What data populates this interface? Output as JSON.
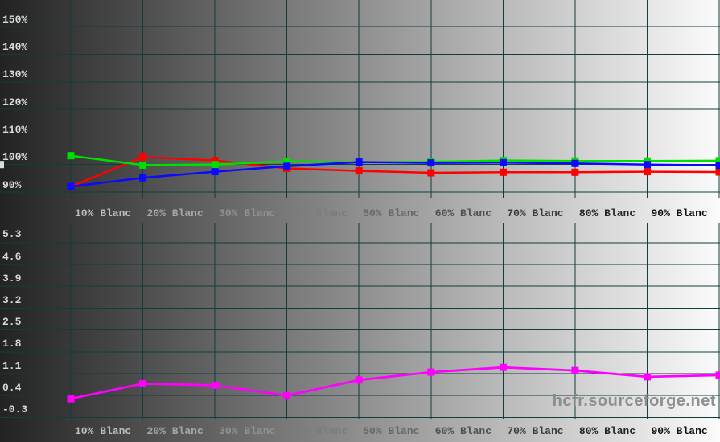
{
  "watermark": {
    "text": "hcfr.sourceforge.net"
  },
  "colors": {
    "background_left": "#232323",
    "background_right": "#fbfbfb",
    "grid": "#0f3e3e",
    "red_series": "#ff0000",
    "green_series": "#00e000",
    "blue_series": "#0a0aff",
    "magenta_series": "#ff00ff",
    "reference_dash_left": "#dcdcdc",
    "reference_dash_right": "#0a0a0a",
    "watermark_text": "#85898c"
  },
  "chart_data": [
    {
      "type": "line",
      "name": "rgb-levels-percent",
      "title": "",
      "xlabel": "",
      "ylabel": "",
      "unit": "%",
      "grid": true,
      "legend": "none",
      "background": "horizontal gradient dark-to-light",
      "x_values": [
        10,
        20,
        30,
        40,
        50,
        60,
        70,
        80,
        90,
        100
      ],
      "categories": [
        "10% Blanc",
        "20% Blanc",
        "30% Blanc",
        "40% Blanc",
        "50% Blanc",
        "60% Blanc",
        "70% Blanc",
        "80% Blanc",
        "90% Blanc"
      ],
      "y_ticks": [
        150,
        140,
        130,
        120,
        110,
        100,
        90
      ],
      "y_tick_labels": [
        "150%",
        "140%",
        "130%",
        "120%",
        "110%",
        "100%",
        "90%"
      ],
      "ylim": [
        88,
        160
      ],
      "reference_value": 100,
      "reference_style": "dashed inverted line with square marker at left edge",
      "series": [
        {
          "name": "Red",
          "color": "#ff0000",
          "values": [
            92.0,
            102.7,
            101.5,
            98.6,
            97.7,
            97.0,
            97.2,
            97.2,
            97.4,
            97.3
          ]
        },
        {
          "name": "Green",
          "color": "#00e000",
          "values": [
            103.2,
            99.8,
            100.0,
            101.2,
            100.8,
            101.0,
            101.5,
            101.3,
            101.3,
            101.4
          ]
        },
        {
          "name": "Blue",
          "color": "#0a0aff",
          "values": [
            92.0,
            95.2,
            97.4,
            99.4,
            100.9,
            100.6,
            100.7,
            100.4,
            100.0,
            99.7
          ]
        }
      ]
    },
    {
      "type": "line",
      "name": "delta-e",
      "title": "",
      "xlabel": "",
      "ylabel": "",
      "unit": "",
      "grid": true,
      "legend": "none",
      "background": "horizontal gradient dark-to-light",
      "x_values": [
        10,
        20,
        30,
        40,
        50,
        60,
        70,
        80,
        90,
        100
      ],
      "categories": [
        "10% Blanc",
        "20% Blanc",
        "30% Blanc",
        "40% Blanc",
        "50% Blanc",
        "60% Blanc",
        "70% Blanc",
        "80% Blanc",
        "90% Blanc"
      ],
      "y_ticks": [
        5.3,
        4.6,
        3.9,
        3.2,
        2.5,
        1.8,
        1.1,
        0.4,
        -0.3
      ],
      "y_tick_labels": [
        "5.3",
        "4.6",
        "3.9",
        "3.2",
        "2.5",
        "1.8",
        "1.1",
        "0.4",
        "-0.3"
      ],
      "ylim": [
        -0.8,
        5.9
      ],
      "series": [
        {
          "name": "Magenta",
          "color": "#ff00ff",
          "values": [
            0.3,
            0.78,
            0.73,
            0.4,
            0.9,
            1.15,
            1.3,
            1.2,
            1.0,
            1.05
          ]
        }
      ]
    }
  ]
}
